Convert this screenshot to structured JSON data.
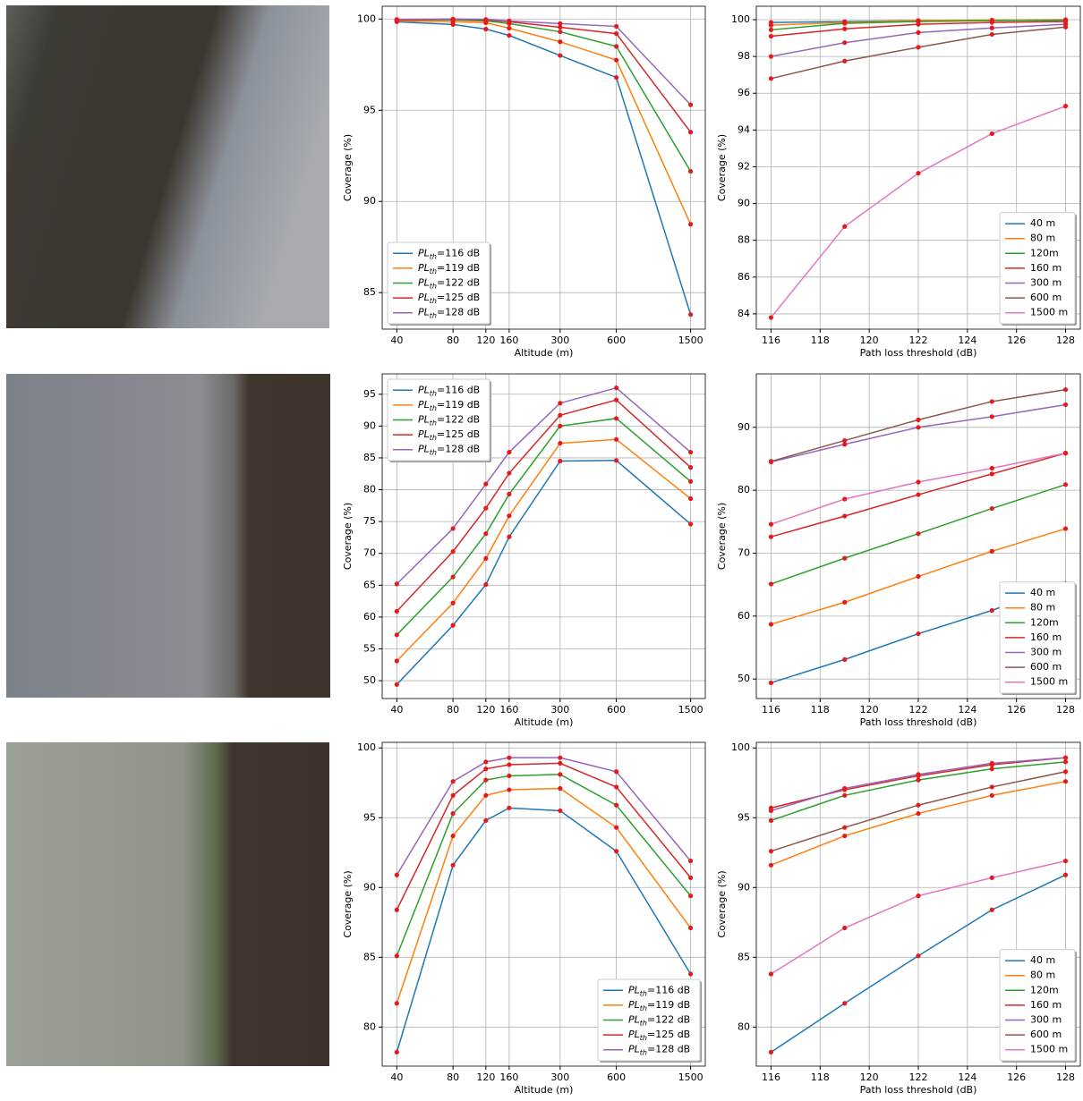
{
  "chart_data": [
    {
      "type": "line",
      "xscale": "log",
      "x": [
        40,
        80,
        120,
        160,
        300,
        600,
        1500
      ],
      "xlim": [
        33.4,
        1798
      ],
      "xticks": [
        40,
        80,
        120,
        160,
        300,
        600,
        1500
      ],
      "ylim": [
        83.0,
        100.7
      ],
      "yticks": [
        85,
        90,
        95,
        100
      ],
      "xlabel": "Altitude (m)",
      "ylabel": "Coverage (%)",
      "grid": true,
      "legend": "lower left",
      "marker_color": "#e41a1c",
      "series": [
        {
          "name": "PLth=116 dB",
          "color": "#1f77b4",
          "values": [
            99.85,
            99.7,
            99.45,
            99.1,
            98.0,
            96.8,
            83.8
          ]
        },
        {
          "name": "PLth=119 dB",
          "color": "#ff7f0e",
          "values": [
            99.9,
            99.85,
            99.8,
            99.5,
            98.75,
            97.75,
            88.75
          ]
        },
        {
          "name": "PLth=122 dB",
          "color": "#2ca02c",
          "values": [
            99.95,
            99.95,
            99.9,
            99.75,
            99.3,
            98.5,
            91.65
          ]
        },
        {
          "name": "PLth=125 dB",
          "color": "#d62728",
          "values": [
            99.95,
            99.98,
            99.95,
            99.85,
            99.55,
            99.2,
            93.8
          ]
        },
        {
          "name": "PLth=128 dB",
          "color": "#9467bd",
          "values": [
            99.98,
            100,
            99.98,
            99.9,
            99.75,
            99.6,
            95.3
          ]
        }
      ]
    },
    {
      "type": "line",
      "xscale": "linear",
      "x": [
        116,
        119,
        122,
        125,
        128
      ],
      "xlim": [
        115.4,
        128.6
      ],
      "xticks": [
        116,
        118,
        120,
        122,
        124,
        126,
        128
      ],
      "ylim": [
        83.17,
        100.73
      ],
      "yticks": [
        84,
        86,
        88,
        90,
        92,
        94,
        96,
        98,
        100
      ],
      "xlabel": "Path loss threshold (dB)",
      "ylabel": "Coverage (%)",
      "grid": true,
      "legend": "lower right",
      "marker_color": "#e41a1c",
      "series": [
        {
          "name": "40 m",
          "color": "#1f77b4",
          "values": [
            99.85,
            99.9,
            99.95,
            99.95,
            99.98
          ]
        },
        {
          "name": "80 m",
          "color": "#ff7f0e",
          "values": [
            99.7,
            99.85,
            99.95,
            99.98,
            100
          ]
        },
        {
          "name": "120m",
          "color": "#2ca02c",
          "values": [
            99.45,
            99.8,
            99.9,
            99.95,
            99.98
          ]
        },
        {
          "name": "160 m",
          "color": "#d62728",
          "values": [
            99.1,
            99.5,
            99.75,
            99.85,
            99.9
          ]
        },
        {
          "name": "300 m",
          "color": "#9467bd",
          "values": [
            98.0,
            98.75,
            99.3,
            99.55,
            99.75
          ]
        },
        {
          "name": "600 m",
          "color": "#8c564b",
          "values": [
            96.8,
            97.75,
            98.5,
            99.2,
            99.6
          ]
        },
        {
          "name": "1500 m",
          "color": "#e377c2",
          "values": [
            83.8,
            88.75,
            91.65,
            93.8,
            95.3
          ]
        }
      ]
    },
    {
      "type": "line",
      "xscale": "log",
      "x": [
        40,
        80,
        120,
        160,
        300,
        600,
        1500
      ],
      "xlim": [
        33.4,
        1798
      ],
      "xticks": [
        40,
        80,
        120,
        160,
        300,
        600,
        1500
      ],
      "ylim": [
        47.2,
        98.2
      ],
      "yticks": [
        50,
        55,
        60,
        65,
        70,
        75,
        80,
        85,
        90,
        95
      ],
      "xlabel": "Altitude (m)",
      "ylabel": "Coverage (%)",
      "grid": true,
      "legend": "upper left",
      "marker_color": "#e41a1c",
      "series": [
        {
          "name": "PLth=116 dB",
          "color": "#1f77b4",
          "values": [
            49.4,
            58.7,
            65.1,
            72.6,
            84.5,
            84.6,
            74.6
          ]
        },
        {
          "name": "PLth=119 dB",
          "color": "#ff7f0e",
          "values": [
            53.1,
            62.2,
            69.2,
            75.9,
            87.3,
            87.9,
            78.6
          ]
        },
        {
          "name": "PLth=122 dB",
          "color": "#2ca02c",
          "values": [
            57.2,
            66.3,
            73.1,
            79.3,
            90.0,
            91.2,
            81.3
          ]
        },
        {
          "name": "PLth=125 dB",
          "color": "#d62728",
          "values": [
            60.9,
            70.3,
            77.1,
            82.6,
            91.7,
            94.1,
            83.5
          ]
        },
        {
          "name": "PLth=128 dB",
          "color": "#9467bd",
          "values": [
            65.2,
            73.9,
            80.9,
            85.9,
            93.6,
            96.0,
            85.9
          ]
        }
      ]
    },
    {
      "type": "line",
      "xscale": "linear",
      "x": [
        116,
        119,
        122,
        125,
        128
      ],
      "xlim": [
        115.4,
        128.6
      ],
      "xticks": [
        116,
        118,
        120,
        122,
        124,
        126,
        128
      ],
      "ylim": [
        46.9,
        98.5
      ],
      "yticks": [
        50,
        60,
        70,
        80,
        90
      ],
      "xlabel": "Path loss threshold (dB)",
      "ylabel": "Coverage (%)",
      "grid": true,
      "legend": "lower right",
      "marker_color": "#e41a1c",
      "series": [
        {
          "name": "40 m",
          "color": "#1f77b4",
          "values": [
            49.4,
            53.1,
            57.2,
            60.9,
            65.2
          ]
        },
        {
          "name": "80 m",
          "color": "#ff7f0e",
          "values": [
            58.7,
            62.2,
            66.3,
            70.3,
            73.9
          ]
        },
        {
          "name": "120m",
          "color": "#2ca02c",
          "values": [
            65.1,
            69.2,
            73.1,
            77.1,
            80.9
          ]
        },
        {
          "name": "160 m",
          "color": "#d62728",
          "values": [
            72.6,
            75.9,
            79.3,
            82.6,
            85.9
          ]
        },
        {
          "name": "300 m",
          "color": "#9467bd",
          "values": [
            84.5,
            87.3,
            90.0,
            91.7,
            93.6
          ]
        },
        {
          "name": "600 m",
          "color": "#8c564b",
          "values": [
            84.6,
            87.9,
            91.2,
            94.1,
            96.0
          ]
        },
        {
          "name": "1500 m",
          "color": "#e377c2",
          "values": [
            74.6,
            78.6,
            81.3,
            83.5,
            85.9
          ]
        }
      ]
    },
    {
      "type": "line",
      "xscale": "log",
      "x": [
        40,
        80,
        120,
        160,
        300,
        600,
        1500
      ],
      "xlim": [
        33.4,
        1798
      ],
      "xticks": [
        40,
        80,
        120,
        160,
        300,
        600,
        1500
      ],
      "ylim": [
        77.2,
        100.4
      ],
      "yticks": [
        80,
        85,
        90,
        95,
        100
      ],
      "xlabel": "Altitude (m)",
      "ylabel": "Coverage (%)",
      "grid": true,
      "legend": "lower right",
      "marker_color": "#e41a1c",
      "series": [
        {
          "name": "PLth=116 dB",
          "color": "#1f77b4",
          "values": [
            78.2,
            91.6,
            94.8,
            95.7,
            95.5,
            92.6,
            83.8
          ]
        },
        {
          "name": "PLth=119 dB",
          "color": "#ff7f0e",
          "values": [
            81.7,
            93.7,
            96.6,
            97.0,
            97.1,
            94.3,
            87.1
          ]
        },
        {
          "name": "PLth=122 dB",
          "color": "#2ca02c",
          "values": [
            85.1,
            95.3,
            97.7,
            98.0,
            98.1,
            95.9,
            89.4
          ]
        },
        {
          "name": "PLth=125 dB",
          "color": "#d62728",
          "values": [
            88.4,
            96.6,
            98.5,
            98.8,
            98.9,
            97.2,
            90.7
          ]
        },
        {
          "name": "PLth=128 dB",
          "color": "#9467bd",
          "values": [
            90.9,
            97.6,
            99.0,
            99.3,
            99.3,
            98.3,
            91.9
          ]
        }
      ]
    },
    {
      "type": "line",
      "xscale": "linear",
      "x": [
        116,
        119,
        122,
        125,
        128
      ],
      "xlim": [
        115.4,
        128.6
      ],
      "xticks": [
        116,
        118,
        120,
        122,
        124,
        126,
        128
      ],
      "ylim": [
        77.2,
        100.4
      ],
      "yticks": [
        80,
        85,
        90,
        95,
        100
      ],
      "xlabel": "Path loss threshold (dB)",
      "ylabel": "Coverage (%)",
      "grid": true,
      "legend": "lower right",
      "marker_color": "#e41a1c",
      "series": [
        {
          "name": "40 m",
          "color": "#1f77b4",
          "values": [
            78.2,
            81.7,
            85.1,
            88.4,
            90.9
          ]
        },
        {
          "name": "80 m",
          "color": "#ff7f0e",
          "values": [
            91.6,
            93.7,
            95.3,
            96.6,
            97.6
          ]
        },
        {
          "name": "120m",
          "color": "#2ca02c",
          "values": [
            94.8,
            96.6,
            97.7,
            98.5,
            99.0
          ]
        },
        {
          "name": "160 m",
          "color": "#d62728",
          "values": [
            95.7,
            97.0,
            98.0,
            98.8,
            99.3
          ]
        },
        {
          "name": "300 m",
          "color": "#9467bd",
          "values": [
            95.5,
            97.1,
            98.1,
            98.9,
            99.3
          ]
        },
        {
          "name": "600 m",
          "color": "#8c564b",
          "values": [
            92.6,
            94.3,
            95.9,
            97.2,
            98.3
          ]
        },
        {
          "name": "1500 m",
          "color": "#e377c2",
          "values": [
            83.8,
            87.1,
            89.4,
            90.7,
            91.9
          ]
        }
      ]
    }
  ]
}
